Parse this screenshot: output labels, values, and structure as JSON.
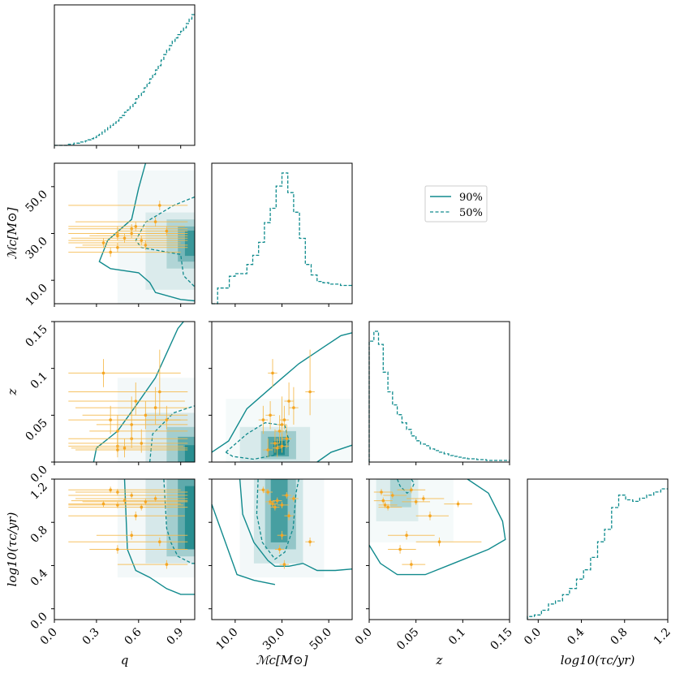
{
  "chart_data": {
    "type": "corner",
    "parameters": [
      {
        "key": "q",
        "label": "q",
        "range": [
          0.0,
          1.0
        ],
        "ticks": [
          "0.0",
          "0.3",
          "0.6",
          "0.9"
        ]
      },
      {
        "key": "mc",
        "label": "ℳc[M⊙]",
        "range": [
          0.0,
          60.0
        ],
        "ticks": [
          "10.0",
          "30.0",
          "50.0"
        ]
      },
      {
        "key": "z",
        "label": "z",
        "range": [
          0.0,
          0.15
        ],
        "ticks": [
          "0.0",
          "0.05",
          "0.1",
          "0.15"
        ]
      },
      {
        "key": "tau",
        "label": "log10(τc/yr)",
        "range": [
          -0.1,
          1.2
        ],
        "ticks": [
          "0.0",
          "0.4",
          "0.8",
          "1.2"
        ]
      }
    ],
    "legend": {
      "position": "upper-center",
      "entries": [
        {
          "label": "90%",
          "style": "solid"
        },
        {
          "label": "50%",
          "style": "dashed"
        }
      ]
    },
    "colors": {
      "contour": "#118a8d",
      "points": "#f5a623",
      "density": "#0a7f81"
    },
    "marginals": {
      "q": {
        "bin_width": 0.02,
        "start": 0.0,
        "values": [
          0,
          0,
          0,
          0,
          0,
          0.01,
          0.01,
          0.02,
          0.02,
          0.03,
          0.03,
          0.04,
          0.05,
          0.06,
          0.07,
          0.09,
          0.1,
          0.12,
          0.14,
          0.16,
          0.18,
          0.2,
          0.22,
          0.25,
          0.27,
          0.3,
          0.32,
          0.35,
          0.38,
          0.42,
          0.45,
          0.48,
          0.52,
          0.56,
          0.6,
          0.64,
          0.68,
          0.72,
          0.77,
          0.82,
          0.86,
          0.9,
          0.94,
          0.97,
          1.0,
          1.03,
          1.06,
          1.1,
          1.14,
          1.18
        ]
      },
      "mc": {
        "bin_width": 2.5,
        "start": 0.0,
        "values": [
          0.0,
          0.12,
          0.12,
          0.21,
          0.23,
          0.23,
          0.3,
          0.37,
          0.47,
          0.62,
          0.73,
          0.9,
          1.0,
          0.85,
          0.7,
          0.5,
          0.3,
          0.22,
          0.17,
          0.16,
          0.15,
          0.15,
          0.14,
          0.14
        ]
      },
      "z": {
        "bin_width": 0.005,
        "start": 0.0,
        "values": [
          0.74,
          0.8,
          0.72,
          0.55,
          0.43,
          0.35,
          0.29,
          0.24,
          0.2,
          0.16,
          0.13,
          0.11,
          0.1,
          0.08,
          0.07,
          0.06,
          0.05,
          0.04,
          0.035,
          0.03,
          0.025,
          0.02,
          0.02,
          0.015,
          0.015,
          0.01,
          0.01,
          0.01,
          0.01,
          0.01
        ]
      },
      "tau": {
        "bin_width": 0.065,
        "start": -0.1,
        "values": [
          0.02,
          0.03,
          0.06,
          0.1,
          0.12,
          0.16,
          0.2,
          0.26,
          0.32,
          0.4,
          0.5,
          0.58,
          0.72,
          0.8,
          0.77,
          0.76,
          0.78,
          0.8,
          0.82,
          0.84
        ]
      }
    },
    "data_points": [
      {
        "q": 0.75,
        "qlo": 0.1,
        "qhi": 0.95,
        "mc": 42,
        "mclo": 40,
        "mchi": 44,
        "z": 0.075,
        "zlo": 0.05,
        "zhi": 0.12,
        "tau": 0.62,
        "taulo": 0.58,
        "tauhi": 0.66
      },
      {
        "q": 0.55,
        "qlo": 0.1,
        "qhi": 0.95,
        "mc": 32,
        "mclo": 30,
        "mchi": 34,
        "z": 0.025,
        "zlo": 0.015,
        "zhi": 0.04,
        "tau": 1.05,
        "taulo": 1.02,
        "tauhi": 1.08
      },
      {
        "q": 0.45,
        "qlo": 0.1,
        "qhi": 0.92,
        "mc": 30,
        "mclo": 28,
        "mchi": 33,
        "z": 0.017,
        "zlo": 0.01,
        "zhi": 0.03,
        "tau": 0.96,
        "taulo": 0.93,
        "tauhi": 0.99
      },
      {
        "q": 0.5,
        "qlo": 0.12,
        "qhi": 0.95,
        "mc": 28,
        "mclo": 26,
        "mchi": 30,
        "z": 0.015,
        "zlo": 0.005,
        "zhi": 0.025,
        "tau": 1.0,
        "taulo": 0.97,
        "tauhi": 1.03
      },
      {
        "q": 0.62,
        "qlo": 0.1,
        "qhi": 0.95,
        "mc": 27,
        "mclo": 25,
        "mchi": 29,
        "z": 0.02,
        "zlo": 0.01,
        "zhi": 0.035,
        "tau": 0.94,
        "taulo": 0.91,
        "tauhi": 0.97
      },
      {
        "q": 0.45,
        "qlo": 0.15,
        "qhi": 0.95,
        "mc": 24,
        "mclo": 22,
        "mchi": 26,
        "z": 0.013,
        "zlo": 0.005,
        "zhi": 0.025,
        "tau": 1.08,
        "taulo": 1.05,
        "tauhi": 1.11
      },
      {
        "q": 0.4,
        "qlo": 0.1,
        "qhi": 0.9,
        "mc": 22,
        "mclo": 20,
        "mchi": 24,
        "z": 0.045,
        "zlo": 0.03,
        "zhi": 0.06,
        "tau": 1.1,
        "taulo": 1.07,
        "tauhi": 1.13
      },
      {
        "q": 0.55,
        "qlo": 0.3,
        "qhi": 0.95,
        "mc": 30,
        "mclo": 28,
        "mchi": 32,
        "z": 0.04,
        "zlo": 0.02,
        "zhi": 0.07,
        "tau": 0.68,
        "taulo": 0.64,
        "tauhi": 0.72
      },
      {
        "q": 0.45,
        "qlo": 0.25,
        "qhi": 0.95,
        "mc": 29,
        "mclo": 27,
        "mchi": 31,
        "z": 0.033,
        "zlo": 0.02,
        "zhi": 0.05,
        "tau": 0.55,
        "taulo": 0.51,
        "tauhi": 0.59
      },
      {
        "q": 0.8,
        "qlo": 0.45,
        "qhi": 0.95,
        "mc": 31,
        "mclo": 29,
        "mchi": 33,
        "z": 0.045,
        "zlo": 0.035,
        "zhi": 0.06,
        "tau": 0.41,
        "taulo": 0.37,
        "tauhi": 0.45
      },
      {
        "q": 0.65,
        "qlo": 0.2,
        "qhi": 0.95,
        "mc": 25,
        "mclo": 23,
        "mchi": 27,
        "z": 0.05,
        "zlo": 0.035,
        "zhi": 0.065,
        "tau": 0.99,
        "taulo": 0.96,
        "tauhi": 1.02
      },
      {
        "q": 0.72,
        "qlo": 0.15,
        "qhi": 0.95,
        "mc": 35,
        "mclo": 33,
        "mchi": 37,
        "z": 0.058,
        "zlo": 0.04,
        "zhi": 0.08,
        "tau": 1.02,
        "taulo": 0.99,
        "tauhi": 1.05
      },
      {
        "q": 0.35,
        "qlo": 0.1,
        "qhi": 0.9,
        "mc": 26,
        "mclo": 24,
        "mchi": 28,
        "z": 0.095,
        "zlo": 0.08,
        "zhi": 0.11,
        "tau": 0.97,
        "taulo": 0.94,
        "tauhi": 1.0
      },
      {
        "q": 0.58,
        "qlo": 0.1,
        "qhi": 0.93,
        "mc": 33,
        "mclo": 31,
        "mchi": 35,
        "z": 0.065,
        "zlo": 0.05,
        "zhi": 0.085,
        "tau": 0.86,
        "taulo": 0.82,
        "tauhi": 0.9
      }
    ]
  }
}
